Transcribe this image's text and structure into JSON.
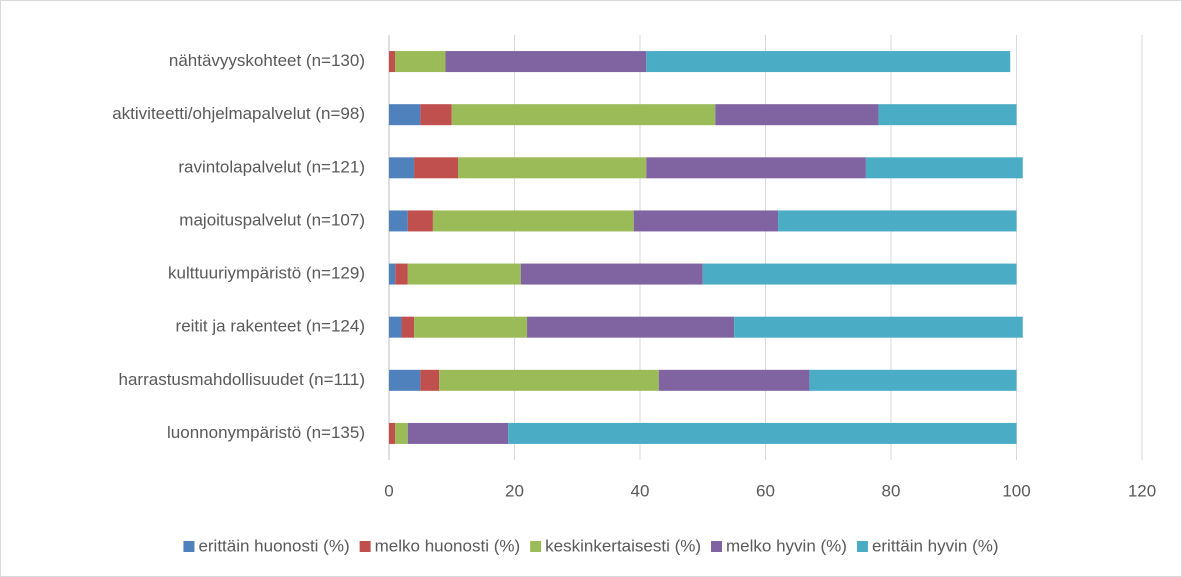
{
  "chart_data": {
    "type": "stacked_barh",
    "categories": [
      "nähtävyyskohteet (n=130)",
      "aktiviteetti/ohjelmapalvelut (n=98)",
      "ravintolapalvelut (n=121)",
      "majoituspalvelut (n=107)",
      "kulttuuriympäristö (n=129)",
      "reitit ja rakenteet (n=124)",
      "harrastusmahdollisuudet (n=111)",
      "luonnonympäristö (n=135)"
    ],
    "series": [
      {
        "name": "erittäin huonosti (%)",
        "color": "#4f81bd",
        "values": [
          0,
          5,
          4,
          3,
          1,
          2,
          5,
          0
        ]
      },
      {
        "name": "melko huonosti (%)",
        "color": "#c0504d",
        "values": [
          1,
          5,
          7,
          4,
          2,
          2,
          3,
          1
        ]
      },
      {
        "name": "keskinkertaisesti (%)",
        "color": "#9bbb59",
        "values": [
          8,
          42,
          30,
          32,
          18,
          18,
          35,
          2
        ]
      },
      {
        "name": "melko hyvin (%)",
        "color": "#8064a2",
        "values": [
          32,
          26,
          35,
          23,
          29,
          33,
          24,
          16
        ]
      },
      {
        "name": "erittäin hyvin (%)",
        "color": "#4bacc6",
        "values": [
          58,
          22,
          25,
          38,
          50,
          46,
          33,
          81
        ]
      }
    ],
    "xlim": [
      0,
      120
    ],
    "xticks": [
      0,
      20,
      40,
      60,
      80,
      100,
      120
    ],
    "grid": true,
    "legend": "bottom"
  }
}
